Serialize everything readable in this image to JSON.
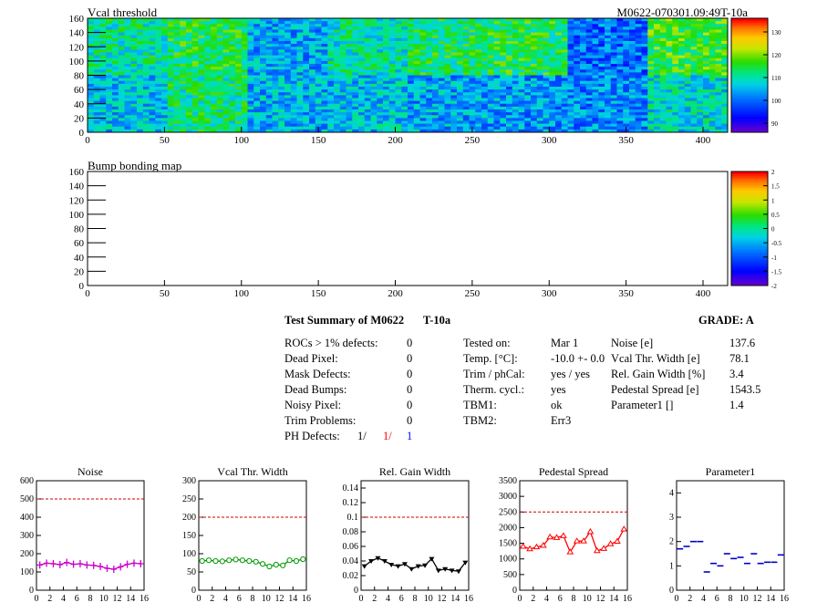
{
  "vcal_map": {
    "title": "Vcal threshold",
    "module_label": "M0622-070301.09:49T-10a",
    "x_ticks": [
      "0",
      "50",
      "100",
      "150",
      "200",
      "250",
      "300",
      "350",
      "400"
    ],
    "y_ticks": [
      "0",
      "20",
      "40",
      "60",
      "80",
      "100",
      "120",
      "140",
      "160"
    ],
    "palette_ticks": [
      "90",
      "100",
      "110",
      "120",
      "130"
    ],
    "xlim": [
      0,
      416
    ],
    "ylim": [
      0,
      160
    ],
    "zlim": [
      86,
      136
    ]
  },
  "bump_map": {
    "title": "Bump bonding map",
    "x_ticks": [
      "0",
      "50",
      "100",
      "150",
      "200",
      "250",
      "300",
      "350",
      "400"
    ],
    "y_ticks": [
      "0",
      "20",
      "40",
      "60",
      "80",
      "100",
      "120",
      "140",
      "160"
    ],
    "palette_ticks": [
      "2",
      "1.5",
      "1",
      "0.5",
      "0",
      "-0.5",
      "-1",
      "-1.5",
      "-2"
    ],
    "zlim": [
      -2,
      2
    ]
  },
  "summary": {
    "title": "Test Summary of M0622",
    "test": "T-10a",
    "grade": "GRADE:  A",
    "defects": [
      {
        "label": "ROCs > 1% defects:",
        "value": "0"
      },
      {
        "label": "Dead Pixel:",
        "value": "0"
      },
      {
        "label": "Mask Defects:",
        "value": "0"
      },
      {
        "label": "Dead Bumps:",
        "value": "0"
      },
      {
        "label": "Noisy Pixel:",
        "value": "0"
      },
      {
        "label": "Trim Problems:",
        "value": "0"
      }
    ],
    "ph_label": "PH Defects:",
    "ph_values": [
      "1/",
      "1/",
      "1"
    ],
    "conditions": [
      {
        "label": "Tested on:",
        "value": "Mar 1"
      },
      {
        "label": "Temp. [°C]:",
        "value": "-10.0 +- 0.0"
      },
      {
        "label": "Trim / phCal:",
        "value": "yes / yes"
      },
      {
        "label": "Therm. cycl.:",
        "value": "yes"
      },
      {
        "label": "TBM1:",
        "value": "ok"
      },
      {
        "label": "TBM2:",
        "value": "Err3"
      }
    ],
    "results": [
      {
        "label": "Noise [e]",
        "value": "137.6"
      },
      {
        "label": "Vcal Thr. Width [e]",
        "value": "78.1"
      },
      {
        "label": "Rel. Gain Width [%]",
        "value": "3.4"
      },
      {
        "label": "Pedestal Spread [e]",
        "value": "1543.5"
      },
      {
        "label": "Parameter1 []",
        "value": "1.4"
      }
    ]
  },
  "chart_data": [
    {
      "type": "heatmap",
      "title": "Vcal threshold",
      "x_range": [
        0,
        416
      ],
      "y_range": [
        0,
        160
      ],
      "z_range": [
        86,
        136
      ],
      "roc_mean_thresholds": {
        "top_row": [
          111,
          114,
          104,
          110,
          113,
          114,
          100,
          116
        ],
        "bottom_row": [
          106,
          112,
          105,
          106,
          104,
          103,
          102,
          108
        ]
      }
    },
    {
      "type": "heatmap",
      "title": "Bump bonding map",
      "x_range": [
        0,
        416
      ],
      "y_range": [
        0,
        160
      ],
      "z_range": [
        -2,
        2
      ],
      "values": []
    },
    {
      "type": "line",
      "title": "Noise",
      "x": [
        0,
        1,
        2,
        3,
        4,
        5,
        6,
        7,
        8,
        9,
        10,
        11,
        12,
        13,
        14,
        15
      ],
      "values": [
        138,
        148,
        145,
        140,
        152,
        142,
        145,
        138,
        136,
        130,
        120,
        115,
        128,
        142,
        148,
        145
      ],
      "cut": 500,
      "ylim": [
        0,
        600
      ],
      "y_ticks": [
        "0",
        "100",
        "200",
        "300",
        "400",
        "500",
        "600"
      ],
      "x_ticks": [
        "0",
        "2",
        "4",
        "6",
        "8",
        "10",
        "12",
        "14",
        "16"
      ],
      "color": "#cc00cc",
      "marker": "cross"
    },
    {
      "type": "line",
      "title": "Vcal Thr. Width",
      "x": [
        0,
        1,
        2,
        3,
        4,
        5,
        6,
        7,
        8,
        9,
        10,
        11,
        12,
        13,
        14,
        15
      ],
      "values": [
        80,
        82,
        80,
        79,
        82,
        84,
        82,
        80,
        78,
        72,
        65,
        70,
        68,
        82,
        80,
        85
      ],
      "cut": 200,
      "ylim": [
        0,
        300
      ],
      "y_ticks": [
        "0",
        "50",
        "100",
        "150",
        "200",
        "250",
        "300"
      ],
      "x_ticks": [
        "0",
        "2",
        "4",
        "6",
        "8",
        "10",
        "12",
        "14",
        "16"
      ],
      "color": "#009900",
      "marker": "circle"
    },
    {
      "type": "line",
      "title": "Rel. Gain Width",
      "x": [
        0,
        1,
        2,
        3,
        4,
        5,
        6,
        7,
        8,
        9,
        10,
        11,
        12,
        13,
        14,
        15
      ],
      "values": [
        0.033,
        0.04,
        0.044,
        0.04,
        0.035,
        0.033,
        0.036,
        0.029,
        0.033,
        0.034,
        0.043,
        0.027,
        0.029,
        0.027,
        0.026,
        0.038
      ],
      "cut": 0.1,
      "ylim": [
        0,
        0.15
      ],
      "y_ticks": [
        "0",
        "0.02",
        "0.04",
        "0.06",
        "0.08",
        "0.1",
        "0.12",
        "0.14"
      ],
      "x_ticks": [
        "0",
        "2",
        "4",
        "6",
        "8",
        "10",
        "12",
        "14",
        "16"
      ],
      "color": "#000000",
      "marker": "triangle-down"
    },
    {
      "type": "line",
      "title": "Pedestal Spread",
      "x": [
        0,
        1,
        2,
        3,
        4,
        5,
        6,
        7,
        8,
        9,
        10,
        11,
        12,
        13,
        14,
        15
      ],
      "values": [
        1400,
        1320,
        1380,
        1430,
        1700,
        1680,
        1740,
        1220,
        1570,
        1570,
        1870,
        1260,
        1330,
        1480,
        1560,
        1950
      ],
      "cut": 2500,
      "ylim": [
        0,
        3500
      ],
      "y_ticks": [
        "0",
        "500",
        "1000",
        "1500",
        "2000",
        "2500",
        "3000",
        "3500"
      ],
      "x_ticks": [
        "0",
        "2",
        "4",
        "6",
        "8",
        "10",
        "12",
        "14",
        "16"
      ],
      "color": "#ff0000",
      "marker": "triangle-up"
    },
    {
      "type": "scatter",
      "title": "Parameter1",
      "x": [
        0,
        1,
        2,
        3,
        4,
        5,
        6,
        7,
        8,
        9,
        10,
        11,
        12,
        13,
        14,
        15
      ],
      "values": [
        1.7,
        1.8,
        2.0,
        2.0,
        0.75,
        1.1,
        1.0,
        1.5,
        1.3,
        1.35,
        1.1,
        1.5,
        1.1,
        1.15,
        1.15,
        1.45
      ],
      "ylim": [
        0,
        4.5
      ],
      "y_ticks": [
        "0",
        "1",
        "2",
        "3",
        "4"
      ],
      "x_ticks": [
        "0",
        "2",
        "4",
        "6",
        "8",
        "10",
        "12",
        "14",
        "16"
      ],
      "color": "#0000cc",
      "marker": "hbar"
    }
  ]
}
